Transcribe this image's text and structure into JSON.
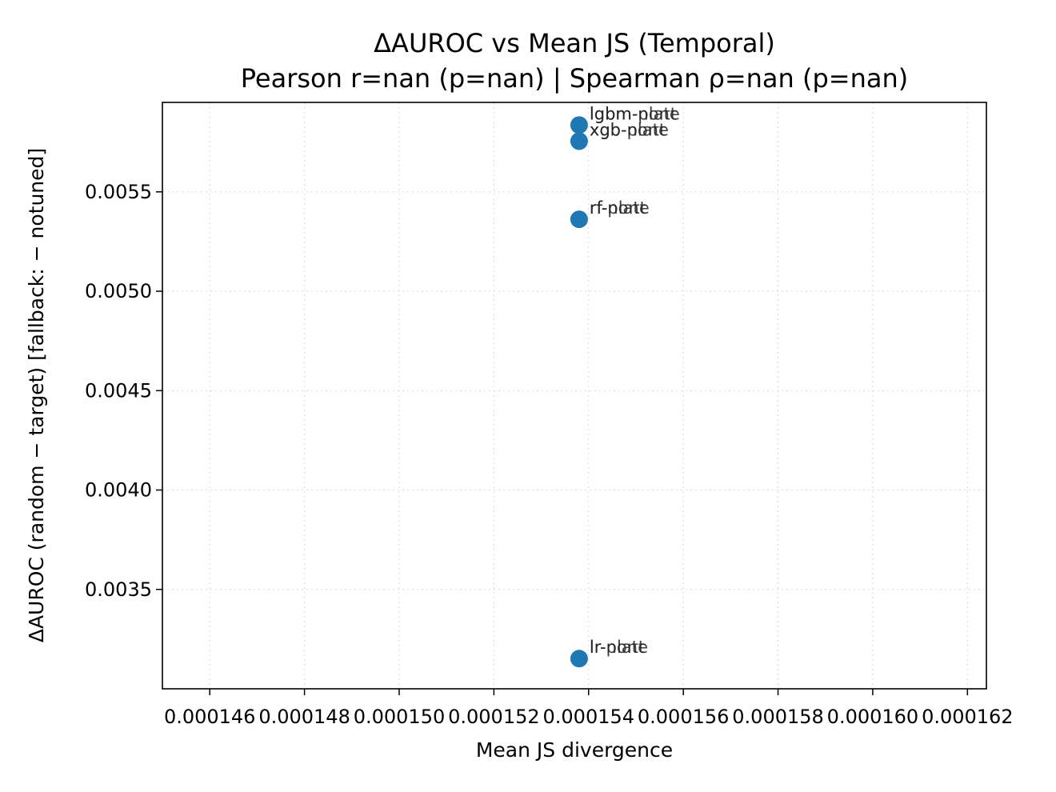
{
  "chart_data": {
    "type": "scatter",
    "title": "ΔAUROC vs Mean JS (Temporal)",
    "subtitle": "Pearson r=nan (p=nan) | Spearman ρ=nan (p=nan)",
    "xlabel": "Mean JS divergence",
    "ylabel": "ΔAUROC (random − target)  [fallback: − notuned]",
    "xlim": [
      0.000145,
      0.0001624
    ],
    "ylim": [
      0.003,
      0.00595
    ],
    "xticks": [
      0.000146,
      0.000148,
      0.00015,
      0.000152,
      0.000154,
      0.000156,
      0.000158,
      0.00016,
      0.000162
    ],
    "xtick_labels": [
      "0.000146",
      "0.000148",
      "0.000150",
      "0.000152",
      "0.000154",
      "0.000156",
      "0.000158",
      "0.000160",
      "0.000162"
    ],
    "yticks": [
      0.0035,
      0.004,
      0.0045,
      0.005,
      0.0055
    ],
    "ytick_labels": [
      "0.0035",
      "0.0040",
      "0.0045",
      "0.0050",
      "0.0055"
    ],
    "grid": true,
    "marker_color": "#1f77b4",
    "points": [
      {
        "label": "lgbm-platt",
        "label_overlay": "lgbm-none",
        "x": 0.0001538,
        "y": 0.005836
      },
      {
        "label": "xgb-platt",
        "label_overlay": "xgb-none",
        "x": 0.0001538,
        "y": 0.005755
      },
      {
        "label": "rf-platt",
        "label_overlay": "rf-none",
        "x": 0.0001538,
        "y": 0.005362
      },
      {
        "label": "lr-platt",
        "label_overlay": "lr-none",
        "x": 0.0001538,
        "y": 0.003152
      }
    ]
  }
}
